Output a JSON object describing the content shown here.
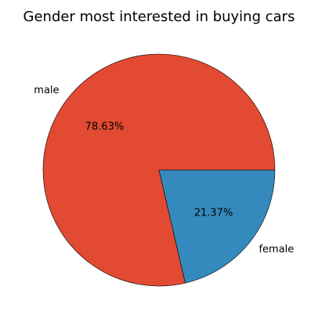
{
  "chart_data": {
    "type": "pie",
    "title": "Gender most interested in buying cars",
    "slices": [
      {
        "label": "male",
        "value": 78.63,
        "pct_label": "78.63%",
        "color": "#E24A33"
      },
      {
        "label": "female",
        "value": 21.37,
        "pct_label": "21.37%",
        "color": "#348ABD"
      }
    ],
    "start_angle_deg": 0,
    "direction": "counterclockwise",
    "edge_color": "#000000",
    "legend": "none"
  }
}
